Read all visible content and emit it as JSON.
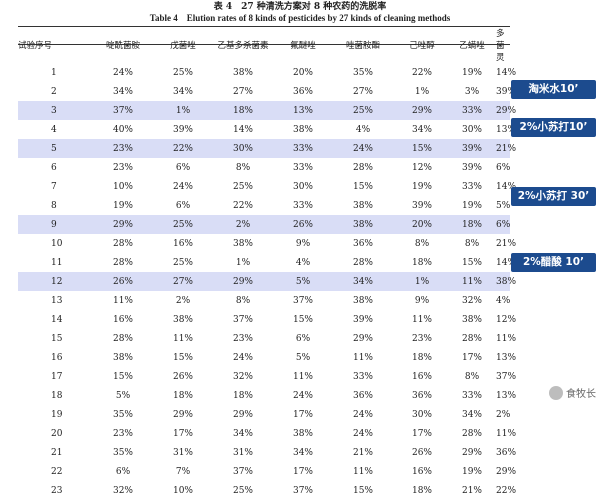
{
  "caption": {
    "cn": "表 4　27 种清洗方案对 8 种农药的洗脱率",
    "en": "Table 4　Elution rates of 8 kinds of pesticides by 27 kinds of cleaning methods"
  },
  "columns": [
    "试验序号",
    "啶酰菌胺",
    "戊菌唑",
    "乙基多杀菌素",
    "氟醚唑",
    "唑菌胺酯",
    "己唑醇",
    "乙螨唑",
    "多菌灵"
  ],
  "rows": [
    {
      "id": "1",
      "v": [
        "24%",
        "25%",
        "38%",
        "20%",
        "35%",
        "22%",
        "19%",
        "14%"
      ]
    },
    {
      "id": "2",
      "v": [
        "34%",
        "34%",
        "27%",
        "36%",
        "27%",
        "1%",
        "3%",
        "39%"
      ]
    },
    {
      "id": "3",
      "v": [
        "37%",
        "1%",
        "18%",
        "13%",
        "25%",
        "29%",
        "33%",
        "29%"
      ]
    },
    {
      "id": "4",
      "v": [
        "40%",
        "39%",
        "14%",
        "38%",
        "4%",
        "34%",
        "30%",
        "13%"
      ]
    },
    {
      "id": "5",
      "v": [
        "23%",
        "22%",
        "30%",
        "33%",
        "24%",
        "15%",
        "39%",
        "21%"
      ]
    },
    {
      "id": "6",
      "v": [
        "23%",
        "6%",
        "8%",
        "33%",
        "28%",
        "12%",
        "39%",
        "6%"
      ]
    },
    {
      "id": "7",
      "v": [
        "10%",
        "24%",
        "25%",
        "30%",
        "15%",
        "19%",
        "33%",
        "14%"
      ]
    },
    {
      "id": "8",
      "v": [
        "19%",
        "6%",
        "22%",
        "33%",
        "38%",
        "39%",
        "19%",
        "5%"
      ]
    },
    {
      "id": "9",
      "v": [
        "29%",
        "25%",
        "2%",
        "26%",
        "38%",
        "20%",
        "18%",
        "6%"
      ]
    },
    {
      "id": "10",
      "v": [
        "28%",
        "16%",
        "38%",
        "9%",
        "36%",
        "8%",
        "8%",
        "21%"
      ]
    },
    {
      "id": "11",
      "v": [
        "28%",
        "25%",
        "1%",
        "4%",
        "28%",
        "18%",
        "15%",
        "14%"
      ]
    },
    {
      "id": "12",
      "v": [
        "26%",
        "27%",
        "29%",
        "5%",
        "34%",
        "1%",
        "11%",
        "38%"
      ]
    },
    {
      "id": "13",
      "v": [
        "11%",
        "2%",
        "8%",
        "37%",
        "38%",
        "9%",
        "32%",
        "4%"
      ]
    },
    {
      "id": "14",
      "v": [
        "16%",
        "38%",
        "37%",
        "15%",
        "39%",
        "11%",
        "38%",
        "12%"
      ]
    },
    {
      "id": "15",
      "v": [
        "28%",
        "11%",
        "23%",
        "6%",
        "29%",
        "23%",
        "28%",
        "11%"
      ]
    },
    {
      "id": "16",
      "v": [
        "38%",
        "15%",
        "24%",
        "5%",
        "11%",
        "18%",
        "17%",
        "13%"
      ]
    },
    {
      "id": "17",
      "v": [
        "15%",
        "26%",
        "32%",
        "11%",
        "33%",
        "16%",
        "8%",
        "37%"
      ]
    },
    {
      "id": "18",
      "v": [
        "5%",
        "18%",
        "18%",
        "24%",
        "36%",
        "36%",
        "33%",
        "13%"
      ]
    },
    {
      "id": "19",
      "v": [
        "35%",
        "29%",
        "29%",
        "17%",
        "24%",
        "30%",
        "34%",
        "2%"
      ]
    },
    {
      "id": "20",
      "v": [
        "23%",
        "17%",
        "34%",
        "38%",
        "24%",
        "17%",
        "28%",
        "11%"
      ]
    },
    {
      "id": "21",
      "v": [
        "35%",
        "31%",
        "31%",
        "34%",
        "21%",
        "26%",
        "29%",
        "36%"
      ]
    },
    {
      "id": "22",
      "v": [
        "6%",
        "7%",
        "37%",
        "17%",
        "11%",
        "16%",
        "19%",
        "29%"
      ]
    },
    {
      "id": "23",
      "v": [
        "32%",
        "10%",
        "25%",
        "37%",
        "15%",
        "18%",
        "21%",
        "22%"
      ]
    }
  ],
  "highlights": [
    {
      "row": "3",
      "label": "淘米水10’"
    },
    {
      "row": "5",
      "label": "2%小苏打10’"
    },
    {
      "row": "9",
      "label": "2%小苏打 30’"
    },
    {
      "row": "12",
      "label": "2%醋酸 10’"
    }
  ],
  "watermark": {
    "label": "食牧长"
  },
  "colors": {
    "highlight_row": "#d9ddf6",
    "tag_bg": "#1c4b8e"
  }
}
